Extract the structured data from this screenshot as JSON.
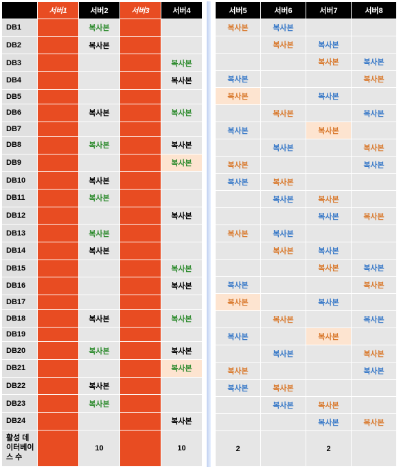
{
  "replica_label": "복사본",
  "footer_label": "활성 데이터베이스 수",
  "left": {
    "headers": [
      "서버1",
      "서버2",
      "서버3",
      "서버4"
    ],
    "red_headers": [
      true,
      false,
      true,
      false
    ],
    "rows": [
      {
        "db": "DB1",
        "cells": [
          {
            "bg": "red"
          },
          {
            "bg": "gray",
            "txt": "green"
          },
          {
            "bg": "red"
          },
          {
            "bg": "gray"
          }
        ]
      },
      {
        "db": "DB2",
        "cells": [
          {
            "bg": "red"
          },
          {
            "bg": "gray",
            "txt": "black"
          },
          {
            "bg": "red"
          },
          {
            "bg": "gray"
          }
        ]
      },
      {
        "db": "DB3",
        "cells": [
          {
            "bg": "red"
          },
          {
            "bg": "gray"
          },
          {
            "bg": "red"
          },
          {
            "bg": "gray",
            "txt": "green"
          }
        ]
      },
      {
        "db": "DB4",
        "cells": [
          {
            "bg": "red"
          },
          {
            "bg": "gray"
          },
          {
            "bg": "red"
          },
          {
            "bg": "gray",
            "txt": "black"
          }
        ]
      },
      {
        "db": "DB5",
        "cells": [
          {
            "bg": "red"
          },
          {
            "bg": "gray"
          },
          {
            "bg": "red"
          },
          {
            "bg": "gray"
          }
        ]
      },
      {
        "db": "DB6",
        "cells": [
          {
            "bg": "red"
          },
          {
            "bg": "gray",
            "txt": "black"
          },
          {
            "bg": "red"
          },
          {
            "bg": "gray",
            "txt": "green"
          }
        ]
      },
      {
        "db": "DB7",
        "cells": [
          {
            "bg": "red"
          },
          {
            "bg": "gray"
          },
          {
            "bg": "red"
          },
          {
            "bg": "gray"
          }
        ]
      },
      {
        "db": "DB8",
        "cells": [
          {
            "bg": "red"
          },
          {
            "bg": "gray",
            "txt": "green"
          },
          {
            "bg": "red"
          },
          {
            "bg": "gray",
            "txt": "black"
          }
        ]
      },
      {
        "db": "DB9",
        "cells": [
          {
            "bg": "red"
          },
          {
            "bg": "gray"
          },
          {
            "bg": "red"
          },
          {
            "bg": "peach",
            "txt": "green"
          }
        ]
      },
      {
        "db": "DB10",
        "cells": [
          {
            "bg": "red"
          },
          {
            "bg": "gray",
            "txt": "black"
          },
          {
            "bg": "red"
          },
          {
            "bg": "gray"
          }
        ]
      },
      {
        "db": "DB11",
        "cells": [
          {
            "bg": "red"
          },
          {
            "bg": "gray",
            "txt": "green"
          },
          {
            "bg": "red"
          },
          {
            "bg": "gray"
          }
        ]
      },
      {
        "db": "DB12",
        "cells": [
          {
            "bg": "red"
          },
          {
            "bg": "gray"
          },
          {
            "bg": "red"
          },
          {
            "bg": "gray",
            "txt": "black"
          }
        ]
      },
      {
        "db": "DB13",
        "cells": [
          {
            "bg": "red"
          },
          {
            "bg": "gray",
            "txt": "green"
          },
          {
            "bg": "red"
          },
          {
            "bg": "gray"
          }
        ]
      },
      {
        "db": "DB14",
        "cells": [
          {
            "bg": "red"
          },
          {
            "bg": "gray",
            "txt": "black"
          },
          {
            "bg": "red"
          },
          {
            "bg": "gray"
          }
        ]
      },
      {
        "db": "DB15",
        "cells": [
          {
            "bg": "red"
          },
          {
            "bg": "gray"
          },
          {
            "bg": "red"
          },
          {
            "bg": "gray",
            "txt": "green"
          }
        ]
      },
      {
        "db": "DB16",
        "cells": [
          {
            "bg": "red"
          },
          {
            "bg": "gray"
          },
          {
            "bg": "red"
          },
          {
            "bg": "gray",
            "txt": "black"
          }
        ]
      },
      {
        "db": "DB17",
        "cells": [
          {
            "bg": "red"
          },
          {
            "bg": "gray"
          },
          {
            "bg": "red"
          },
          {
            "bg": "gray"
          }
        ]
      },
      {
        "db": "DB18",
        "cells": [
          {
            "bg": "red"
          },
          {
            "bg": "gray",
            "txt": "black"
          },
          {
            "bg": "red"
          },
          {
            "bg": "gray",
            "txt": "green"
          }
        ]
      },
      {
        "db": "DB19",
        "cells": [
          {
            "bg": "red"
          },
          {
            "bg": "gray"
          },
          {
            "bg": "red"
          },
          {
            "bg": "gray"
          }
        ]
      },
      {
        "db": "DB20",
        "cells": [
          {
            "bg": "red"
          },
          {
            "bg": "gray",
            "txt": "green"
          },
          {
            "bg": "red"
          },
          {
            "bg": "gray",
            "txt": "black"
          }
        ]
      },
      {
        "db": "DB21",
        "cells": [
          {
            "bg": "red"
          },
          {
            "bg": "gray"
          },
          {
            "bg": "red"
          },
          {
            "bg": "peach",
            "txt": "green"
          }
        ]
      },
      {
        "db": "DB22",
        "cells": [
          {
            "bg": "red"
          },
          {
            "bg": "gray",
            "txt": "black"
          },
          {
            "bg": "red"
          },
          {
            "bg": "gray"
          }
        ]
      },
      {
        "db": "DB23",
        "cells": [
          {
            "bg": "red"
          },
          {
            "bg": "gray",
            "txt": "green"
          },
          {
            "bg": "red"
          },
          {
            "bg": "gray"
          }
        ]
      },
      {
        "db": "DB24",
        "cells": [
          {
            "bg": "red"
          },
          {
            "bg": "gray"
          },
          {
            "bg": "red"
          },
          {
            "bg": "gray",
            "txt": "black"
          }
        ]
      }
    ],
    "footer": [
      {
        "bg": "red",
        "val": ""
      },
      {
        "bg": "gray",
        "val": "10"
      },
      {
        "bg": "red",
        "val": ""
      },
      {
        "bg": "gray",
        "val": "10"
      }
    ]
  },
  "right": {
    "headers": [
      "서버5",
      "서버6",
      "서버7",
      "서버8"
    ],
    "rows": [
      {
        "cells": [
          {
            "bg": "gray",
            "txt": "orange"
          },
          {
            "bg": "gray",
            "txt": "blue"
          },
          {
            "bg": "gray"
          },
          {
            "bg": "gray"
          }
        ]
      },
      {
        "cells": [
          {
            "bg": "gray"
          },
          {
            "bg": "gray",
            "txt": "orange"
          },
          {
            "bg": "gray",
            "txt": "blue"
          },
          {
            "bg": "gray"
          }
        ]
      },
      {
        "cells": [
          {
            "bg": "gray"
          },
          {
            "bg": "gray"
          },
          {
            "bg": "gray",
            "txt": "orange"
          },
          {
            "bg": "gray",
            "txt": "blue"
          }
        ]
      },
      {
        "cells": [
          {
            "bg": "gray",
            "txt": "blue"
          },
          {
            "bg": "gray"
          },
          {
            "bg": "gray"
          },
          {
            "bg": "gray",
            "txt": "orange"
          }
        ]
      },
      {
        "cells": [
          {
            "bg": "peach",
            "txt": "orange"
          },
          {
            "bg": "gray"
          },
          {
            "bg": "gray",
            "txt": "blue"
          },
          {
            "bg": "gray"
          }
        ]
      },
      {
        "cells": [
          {
            "bg": "gray"
          },
          {
            "bg": "gray",
            "txt": "orange"
          },
          {
            "bg": "gray"
          },
          {
            "bg": "gray",
            "txt": "blue"
          }
        ]
      },
      {
        "cells": [
          {
            "bg": "gray",
            "txt": "blue"
          },
          {
            "bg": "gray"
          },
          {
            "bg": "peach",
            "txt": "orange"
          },
          {
            "bg": "gray"
          }
        ]
      },
      {
        "cells": [
          {
            "bg": "gray"
          },
          {
            "bg": "gray",
            "txt": "blue"
          },
          {
            "bg": "gray"
          },
          {
            "bg": "gray",
            "txt": "orange"
          }
        ]
      },
      {
        "cells": [
          {
            "bg": "gray",
            "txt": "orange"
          },
          {
            "bg": "gray"
          },
          {
            "bg": "gray"
          },
          {
            "bg": "gray",
            "txt": "blue"
          }
        ]
      },
      {
        "cells": [
          {
            "bg": "gray",
            "txt": "blue"
          },
          {
            "bg": "gray",
            "txt": "orange"
          },
          {
            "bg": "gray"
          },
          {
            "bg": "gray"
          }
        ]
      },
      {
        "cells": [
          {
            "bg": "gray"
          },
          {
            "bg": "gray",
            "txt": "blue"
          },
          {
            "bg": "gray",
            "txt": "orange"
          },
          {
            "bg": "gray"
          }
        ]
      },
      {
        "cells": [
          {
            "bg": "gray"
          },
          {
            "bg": "gray"
          },
          {
            "bg": "gray",
            "txt": "blue"
          },
          {
            "bg": "gray",
            "txt": "orange"
          }
        ]
      },
      {
        "cells": [
          {
            "bg": "gray",
            "txt": "orange"
          },
          {
            "bg": "gray",
            "txt": "blue"
          },
          {
            "bg": "gray"
          },
          {
            "bg": "gray"
          }
        ]
      },
      {
        "cells": [
          {
            "bg": "gray"
          },
          {
            "bg": "gray",
            "txt": "orange"
          },
          {
            "bg": "gray",
            "txt": "blue"
          },
          {
            "bg": "gray"
          }
        ]
      },
      {
        "cells": [
          {
            "bg": "gray"
          },
          {
            "bg": "gray"
          },
          {
            "bg": "gray",
            "txt": "orange"
          },
          {
            "bg": "gray",
            "txt": "blue"
          }
        ]
      },
      {
        "cells": [
          {
            "bg": "gray",
            "txt": "blue"
          },
          {
            "bg": "gray"
          },
          {
            "bg": "gray"
          },
          {
            "bg": "gray",
            "txt": "orange"
          }
        ]
      },
      {
        "cells": [
          {
            "bg": "peach",
            "txt": "orange"
          },
          {
            "bg": "gray"
          },
          {
            "bg": "gray",
            "txt": "blue"
          },
          {
            "bg": "gray"
          }
        ]
      },
      {
        "cells": [
          {
            "bg": "gray"
          },
          {
            "bg": "gray",
            "txt": "orange"
          },
          {
            "bg": "gray"
          },
          {
            "bg": "gray",
            "txt": "blue"
          }
        ]
      },
      {
        "cells": [
          {
            "bg": "gray",
            "txt": "blue"
          },
          {
            "bg": "gray"
          },
          {
            "bg": "peach",
            "txt": "orange"
          },
          {
            "bg": "gray"
          }
        ]
      },
      {
        "cells": [
          {
            "bg": "gray"
          },
          {
            "bg": "gray",
            "txt": "blue"
          },
          {
            "bg": "gray"
          },
          {
            "bg": "gray",
            "txt": "orange"
          }
        ]
      },
      {
        "cells": [
          {
            "bg": "gray",
            "txt": "orange"
          },
          {
            "bg": "gray"
          },
          {
            "bg": "gray"
          },
          {
            "bg": "gray",
            "txt": "blue"
          }
        ]
      },
      {
        "cells": [
          {
            "bg": "gray",
            "txt": "blue"
          },
          {
            "bg": "gray",
            "txt": "orange"
          },
          {
            "bg": "gray"
          },
          {
            "bg": "gray"
          }
        ]
      },
      {
        "cells": [
          {
            "bg": "gray"
          },
          {
            "bg": "gray",
            "txt": "blue"
          },
          {
            "bg": "gray",
            "txt": "orange"
          },
          {
            "bg": "gray"
          }
        ]
      },
      {
        "cells": [
          {
            "bg": "gray"
          },
          {
            "bg": "gray"
          },
          {
            "bg": "gray",
            "txt": "blue"
          },
          {
            "bg": "gray",
            "txt": "orange"
          }
        ]
      }
    ],
    "footer": [
      {
        "bg": "gray",
        "val": "2"
      },
      {
        "bg": "gray",
        "val": ""
      },
      {
        "bg": "gray",
        "val": "2"
      },
      {
        "bg": "gray",
        "val": ""
      }
    ]
  }
}
